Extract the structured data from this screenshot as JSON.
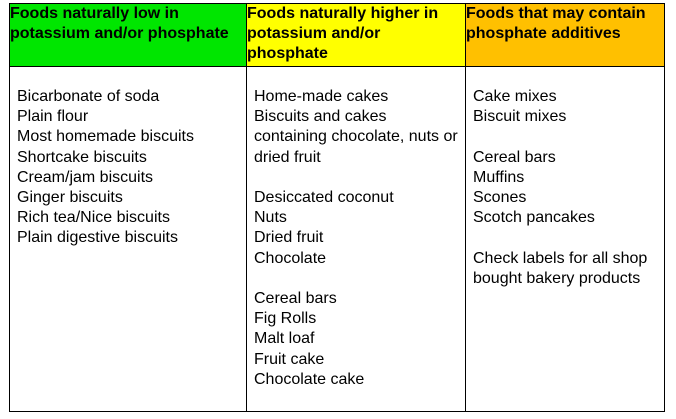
{
  "table": {
    "columns": [
      {
        "header": "Foods naturally low in potassium and/or phosphate",
        "header_bg": "#00e600",
        "groups": [
          [
            "Bicarbonate of soda",
            "Plain flour",
            "Most homemade biscuits",
            "Shortcake biscuits",
            "Cream/jam biscuits",
            "Ginger biscuits",
            "Rich tea/Nice biscuits",
            "Plain digestive biscuits"
          ]
        ]
      },
      {
        "header": "Foods naturally higher in potassium and/or phosphate",
        "header_bg": "#ffff00",
        "groups": [
          [
            "Home-made cakes",
            "Biscuits and cakes containing chocolate, nuts or dried fruit"
          ],
          [
            "Desiccated coconut",
            "Nuts",
            "Dried fruit",
            "Chocolate"
          ],
          [
            "Cereal bars",
            "Fig Rolls",
            "Malt loaf",
            "Fruit cake",
            "Chocolate cake"
          ]
        ]
      },
      {
        "header": "Foods that may contain phosphate additives",
        "header_bg": "#ffc000",
        "groups": [
          [
            "Cake mixes",
            "Biscuit mixes"
          ],
          [
            "Cereal bars",
            "Muffins",
            "Scones",
            "Scotch pancakes"
          ],
          [
            "Check labels for all shop bought bakery products"
          ]
        ]
      }
    ]
  }
}
